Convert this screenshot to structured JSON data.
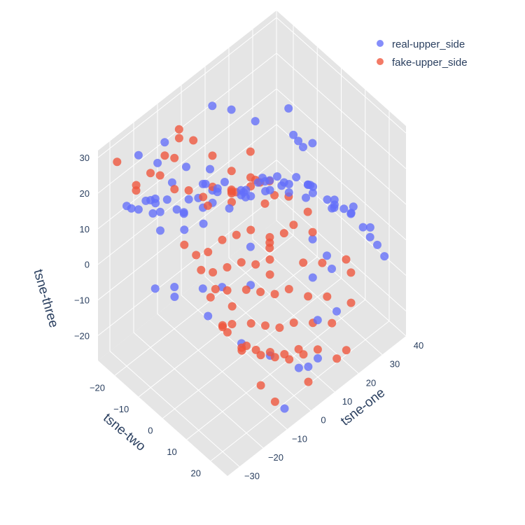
{
  "chart_data": {
    "type": "scatter3d",
    "axes": {
      "x": {
        "title": "tsne-one",
        "range": [
          -35,
          40
        ],
        "ticks": [
          -30,
          -20,
          -10,
          0,
          10,
          20,
          30,
          40
        ],
        "tick_labels": [
          "−30",
          "−20",
          "−10",
          "0",
          "10",
          "20",
          "30",
          "40"
        ]
      },
      "y": {
        "title": "tsne-two",
        "range": [
          -27,
          27
        ],
        "ticks": [
          -20,
          -10,
          0,
          10,
          20
        ],
        "tick_labels": [
          "−20",
          "−10",
          "0",
          "10",
          "20"
        ]
      },
      "z": {
        "title": "tsne-three",
        "range": [
          -27,
          32
        ],
        "ticks": [
          -20,
          -10,
          0,
          10,
          20,
          30
        ],
        "tick_labels": [
          "−20",
          "−10",
          "0",
          "10",
          "20",
          "30"
        ]
      }
    },
    "grid": true,
    "legend": {
      "position": "top-right"
    },
    "series": [
      {
        "name": "real-upper_side",
        "color": "#636efa",
        "points": [
          [
            -30,
            -20,
            18
          ],
          [
            -26,
            -22,
            14
          ],
          [
            -22,
            -23,
            11
          ],
          [
            -18,
            -21,
            9
          ],
          [
            -14,
            -19,
            12
          ],
          [
            -20,
            -18,
            16
          ],
          [
            -25,
            -15,
            20
          ],
          [
            -28,
            -14,
            22
          ],
          [
            -24,
            -12,
            18
          ],
          [
            -17,
            -12,
            15
          ],
          [
            -12,
            -14,
            10
          ],
          [
            -9,
            -17,
            7
          ],
          [
            -15,
            -22,
            21
          ],
          [
            -20,
            -25,
            24
          ],
          [
            -10,
            -24,
            23
          ],
          [
            -6,
            -19,
            17
          ],
          [
            -3,
            -15,
            13
          ],
          [
            -12,
            -8,
            18
          ],
          [
            -8,
            -10,
            12
          ],
          [
            -2,
            -12,
            9
          ],
          [
            2,
            -16,
            8
          ],
          [
            5,
            -20,
            10
          ],
          [
            -18,
            -6,
            22
          ],
          [
            -14,
            -3,
            26
          ],
          [
            -8,
            -4,
            20
          ],
          [
            -5,
            -2,
            15
          ],
          [
            -22,
            -9,
            27
          ],
          [
            -11,
            2,
            28
          ],
          [
            -4,
            3,
            22
          ],
          [
            2,
            0,
            16
          ],
          [
            6,
            -6,
            12
          ],
          [
            9,
            -11,
            6
          ],
          [
            12,
            -14,
            4
          ],
          [
            -16,
            4,
            30
          ],
          [
            -1,
            6,
            25
          ],
          [
            6,
            4,
            18
          ],
          [
            12,
            -2,
            14
          ],
          [
            16,
            -8,
            8
          ],
          [
            19,
            -12,
            5
          ],
          [
            3,
            10,
            27
          ],
          [
            10,
            8,
            20
          ],
          [
            15,
            3,
            12
          ],
          [
            20,
            -4,
            8
          ],
          [
            24,
            -9,
            2
          ],
          [
            8,
            13,
            26
          ],
          [
            15,
            11,
            19
          ],
          [
            22,
            6,
            10
          ],
          [
            27,
            0,
            6
          ],
          [
            31,
            -5,
            1
          ],
          [
            12,
            16,
            23
          ],
          [
            20,
            14,
            14
          ],
          [
            26,
            10,
            6
          ],
          [
            32,
            5,
            0
          ],
          [
            18,
            19,
            18
          ],
          [
            25,
            16,
            10
          ],
          [
            33,
            12,
            4
          ],
          [
            36,
            8,
            -2
          ],
          [
            22,
            22,
            14
          ],
          [
            30,
            19,
            4
          ],
          [
            38,
            14,
            -6
          ],
          [
            28,
            24,
            8
          ],
          [
            35,
            20,
            -3
          ],
          [
            40,
            18,
            -10
          ],
          [
            15,
            22,
            20
          ],
          [
            5,
            20,
            26
          ],
          [
            -6,
            14,
            30
          ],
          [
            26,
            -2,
            16
          ],
          [
            30,
            -8,
            12
          ],
          [
            34,
            -14,
            8
          ],
          [
            20,
            -16,
            18
          ],
          [
            14,
            -20,
            22
          ],
          [
            8,
            -22,
            25
          ],
          [
            -28,
            10,
            30
          ],
          [
            -32,
            6,
            28
          ],
          [
            -34,
            -2,
            24
          ],
          [
            -30,
            -8,
            26
          ],
          [
            36,
            -18,
            12
          ],
          [
            38,
            -10,
            6
          ],
          [
            0,
            22,
            -18
          ],
          [
            6,
            20,
            -22
          ],
          [
            12,
            18,
            -24
          ],
          [
            -6,
            16,
            -15
          ],
          [
            18,
            12,
            -20
          ],
          [
            -12,
            10,
            -12
          ],
          [
            24,
            4,
            -16
          ],
          [
            30,
            -2,
            -12
          ],
          [
            -18,
            2,
            -6
          ],
          [
            10,
            -8,
            -18
          ],
          [
            -4,
            -6,
            -10
          ],
          [
            16,
            -14,
            -14
          ],
          [
            -20,
            -10,
            -4
          ],
          [
            2,
            -20,
            -22
          ],
          [
            -14,
            -24,
            -16
          ],
          [
            34,
            2,
            -20
          ],
          [
            28,
            10,
            -24
          ],
          [
            -26,
            -4,
            0
          ],
          [
            22,
            -22,
            -8
          ],
          [
            38,
            -4,
            -22
          ],
          [
            -8,
            24,
            -24
          ]
        ]
      },
      {
        "name": "fake-upper_side",
        "color": "#ef553b",
        "points": [
          [
            -33,
            14,
            22
          ],
          [
            -31,
            18,
            18
          ],
          [
            -28,
            22,
            14
          ],
          [
            -30,
            20,
            8
          ],
          [
            -26,
            16,
            4
          ],
          [
            -27,
            12,
            10
          ],
          [
            -24,
            24,
            2
          ],
          [
            -22,
            20,
            -2
          ],
          [
            -20,
            14,
            0
          ],
          [
            -18,
            10,
            6
          ],
          [
            -22,
            8,
            12
          ],
          [
            -25,
            4,
            16
          ],
          [
            -16,
            22,
            -6
          ],
          [
            -14,
            18,
            -8
          ],
          [
            -12,
            14,
            -4
          ],
          [
            -10,
            10,
            2
          ],
          [
            -14,
            6,
            8
          ],
          [
            -18,
            2,
            12
          ],
          [
            -8,
            20,
            -12
          ],
          [
            -6,
            16,
            -14
          ],
          [
            -4,
            12,
            -10
          ],
          [
            -2,
            8,
            -4
          ],
          [
            -6,
            4,
            4
          ],
          [
            -10,
            0,
            10
          ],
          [
            0,
            18,
            -18
          ],
          [
            2,
            14,
            -20
          ],
          [
            4,
            10,
            -16
          ],
          [
            6,
            6,
            -10
          ],
          [
            2,
            2,
            -2
          ],
          [
            -2,
            -2,
            6
          ],
          [
            8,
            16,
            -22
          ],
          [
            10,
            12,
            -24
          ],
          [
            12,
            8,
            -20
          ],
          [
            14,
            4,
            -14
          ],
          [
            10,
            0,
            -6
          ],
          [
            6,
            -4,
            2
          ],
          [
            16,
            14,
            -26
          ],
          [
            18,
            10,
            -22
          ],
          [
            20,
            6,
            -18
          ],
          [
            22,
            2,
            -12
          ],
          [
            18,
            -2,
            -4
          ],
          [
            14,
            -6,
            4
          ],
          [
            24,
            12,
            -24
          ],
          [
            26,
            8,
            -20
          ],
          [
            28,
            4,
            -14
          ],
          [
            24,
            -4,
            -6
          ],
          [
            20,
            -8,
            2
          ],
          [
            30,
            -2,
            -10
          ],
          [
            -20,
            -20,
            22
          ],
          [
            -16,
            -18,
            26
          ],
          [
            -12,
            -16,
            30
          ],
          [
            -8,
            -20,
            28
          ],
          [
            -4,
            -18,
            24
          ],
          [
            0,
            -14,
            20
          ],
          [
            -24,
            -22,
            18
          ],
          [
            4,
            -10,
            16
          ],
          [
            8,
            -6,
            12
          ],
          [
            12,
            -10,
            10
          ],
          [
            16,
            -12,
            6
          ],
          [
            20,
            -14,
            2
          ],
          [
            -6,
            -8,
            18
          ],
          [
            -2,
            -4,
            14
          ],
          [
            2,
            -8,
            12
          ],
          [
            6,
            -12,
            8
          ],
          [
            10,
            -16,
            4
          ],
          [
            14,
            -18,
            0
          ],
          [
            -14,
            -10,
            20
          ],
          [
            -10,
            -6,
            16
          ],
          [
            26,
            -16,
            -2
          ],
          [
            30,
            -12,
            -6
          ],
          [
            34,
            -8,
            -10
          ],
          [
            -28,
            -18,
            24
          ],
          [
            -22,
            -14,
            26
          ],
          [
            -18,
            -12,
            30
          ],
          [
            -30,
            -24,
            28
          ],
          [
            28,
            16,
            -18
          ],
          [
            32,
            12,
            -14
          ],
          [
            36,
            6,
            -16
          ],
          [
            4,
            22,
            -24
          ],
          [
            -12,
            24,
            -20
          ],
          [
            -20,
            26,
            -10
          ],
          [
            18,
            20,
            -26
          ],
          [
            24,
            18,
            -28
          ],
          [
            -28,
            26,
            4
          ],
          [
            -32,
            24,
            10
          ],
          [
            -34,
            8,
            26
          ],
          [
            -24,
            -6,
            28
          ],
          [
            -16,
            -2,
            24
          ],
          [
            8,
            2,
            -8
          ],
          [
            12,
            -2,
            -2
          ],
          [
            16,
            -6,
            -8
          ],
          [
            20,
            -10,
            -14
          ],
          [
            22,
            -20,
            6
          ]
        ]
      }
    ]
  }
}
